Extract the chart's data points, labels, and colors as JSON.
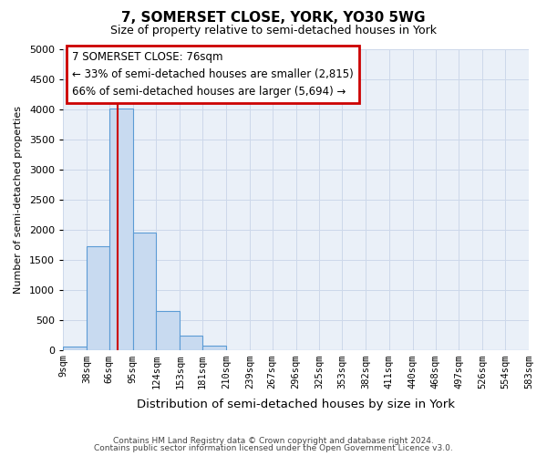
{
  "title": "7, SOMERSET CLOSE, YORK, YO30 5WG",
  "subtitle": "Size of property relative to semi-detached houses in York",
  "xlabel": "Distribution of semi-detached houses by size in York",
  "ylabel": "Number of semi-detached properties",
  "bar_color": "#c8daf0",
  "bar_edge_color": "#5b9bd5",
  "bin_edges": [
    9,
    38,
    66,
    95,
    124,
    153,
    181,
    210,
    239,
    267,
    296,
    325,
    353,
    382,
    411,
    440,
    468,
    497,
    526,
    554,
    583
  ],
  "bar_heights": [
    50,
    1720,
    4020,
    1950,
    650,
    240,
    70,
    0,
    0,
    0,
    0,
    0,
    0,
    0,
    0,
    0,
    0,
    0,
    0,
    0
  ],
  "tick_labels": [
    "9sqm",
    "38sqm",
    "66sqm",
    "95sqm",
    "124sqm",
    "153sqm",
    "181sqm",
    "210sqm",
    "239sqm",
    "267sqm",
    "296sqm",
    "325sqm",
    "353sqm",
    "382sqm",
    "411sqm",
    "440sqm",
    "468sqm",
    "497sqm",
    "526sqm",
    "554sqm",
    "583sqm"
  ],
  "ylim": [
    0,
    5000
  ],
  "yticks": [
    0,
    500,
    1000,
    1500,
    2000,
    2500,
    3000,
    3500,
    4000,
    4500,
    5000
  ],
  "property_line_x": 76,
  "annot_line1": "7 SOMERSET CLOSE: 76sqm",
  "annot_line2": "← 33% of semi-detached houses are smaller (2,815)",
  "annot_line3": "66% of semi-detached houses are larger (5,694) →",
  "box_edge_color": "#cc0000",
  "footer_line1": "Contains HM Land Registry data © Crown copyright and database right 2024.",
  "footer_line2": "Contains public sector information licensed under the Open Government Licence v3.0.",
  "background_color": "#ffffff",
  "grid_color": "#cdd8ea",
  "plot_bg_color": "#eaf0f8"
}
